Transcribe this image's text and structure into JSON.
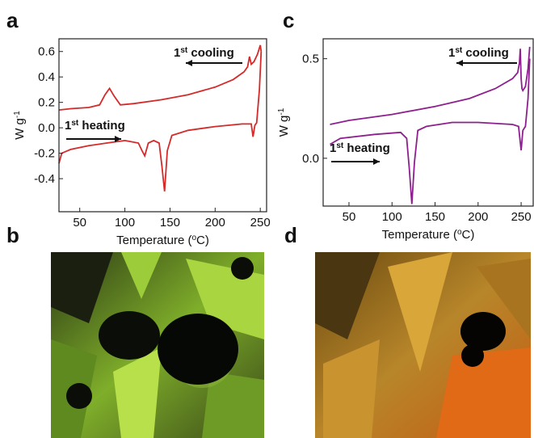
{
  "chart_data": [
    {
      "type": "line",
      "panel_label": "a",
      "ylabel": {
        "text": "W g",
        "sup": "-1"
      },
      "xlabel": {
        "text": "Temperature (",
        "sup": "o",
        "rest": "C)"
      },
      "xlim": [
        27,
        257
      ],
      "ylim": [
        -0.66,
        0.7
      ],
      "xticks": [
        50,
        100,
        150,
        200,
        250
      ],
      "yticks": [
        -0.4,
        -0.2,
        {
          "value": 0,
          "label": "0.0"
        },
        0.2,
        0.4,
        0.6
      ],
      "annotations": [
        {
          "base": "1",
          "sup": "st",
          "text": " cooling"
        },
        {
          "base": "1",
          "sup": "st",
          "text": " heating"
        }
      ],
      "series": [
        {
          "color": "#d42a2a",
          "x": [
            27,
            40,
            60,
            72,
            78,
            83,
            88,
            95,
            110,
            140,
            170,
            200,
            220,
            232,
            236,
            238,
            240,
            243,
            247,
            250,
            251
          ],
          "values": [
            0.14,
            0.15,
            0.16,
            0.18,
            0.26,
            0.31,
            0.25,
            0.18,
            0.19,
            0.22,
            0.26,
            0.32,
            0.38,
            0.44,
            0.48,
            0.56,
            0.5,
            0.52,
            0.58,
            0.65,
            0.6
          ]
        },
        {
          "color": "#d42a2a",
          "x": [
            27,
            30,
            40,
            60,
            80,
            100,
            115,
            119,
            122,
            126,
            132,
            138,
            141,
            144,
            147,
            152,
            170,
            200,
            230,
            240,
            242,
            244,
            246,
            249,
            251
          ],
          "values": [
            -0.28,
            -0.2,
            -0.17,
            -0.14,
            -0.12,
            -0.1,
            -0.12,
            -0.18,
            -0.22,
            -0.12,
            -0.1,
            -0.12,
            -0.3,
            -0.5,
            -0.18,
            -0.06,
            -0.02,
            0.01,
            0.03,
            0.03,
            -0.07,
            0.02,
            0.04,
            0.3,
            0.6
          ]
        }
      ]
    },
    {
      "type": "line",
      "panel_label": "c",
      "ylabel": {
        "text": "W g",
        "sup": "-1"
      },
      "xlabel": {
        "text": "Temperature (",
        "sup": "o",
        "rest": "C)"
      },
      "xlim": [
        20,
        264
      ],
      "ylim": [
        -0.24,
        0.6
      ],
      "xticks": [
        50,
        100,
        150,
        200,
        250
      ],
      "yticks": [
        {
          "value": 0,
          "label": "0.0"
        },
        0.5
      ],
      "annotations": [
        {
          "base": "1",
          "sup": "st",
          "text": " cooling"
        },
        {
          "base": "1",
          "sup": "st",
          "text": " heating"
        }
      ],
      "series": [
        {
          "color": "#8e1f8e",
          "x": [
            28,
            50,
            100,
            150,
            190,
            220,
            240,
            246,
            248,
            249,
            250,
            251,
            252,
            255,
            258,
            260
          ],
          "values": [
            0.17,
            0.19,
            0.22,
            0.26,
            0.3,
            0.35,
            0.4,
            0.43,
            0.48,
            0.55,
            0.4,
            0.35,
            0.34,
            0.36,
            0.45,
            0.56
          ]
        },
        {
          "color": "#8e1f8e",
          "x": [
            28,
            40,
            80,
            110,
            117,
            120,
            123,
            126,
            130,
            140,
            170,
            200,
            240,
            247,
            249,
            250,
            252,
            255,
            258,
            260
          ],
          "values": [
            0.07,
            0.1,
            0.12,
            0.13,
            0.1,
            -0.05,
            -0.23,
            -0.02,
            0.14,
            0.16,
            0.18,
            0.18,
            0.17,
            0.16,
            0.08,
            0.04,
            0.14,
            0.16,
            0.3,
            0.5
          ]
        }
      ]
    }
  ],
  "images": [
    {
      "panel_label": "b"
    },
    {
      "panel_label": "d"
    }
  ]
}
